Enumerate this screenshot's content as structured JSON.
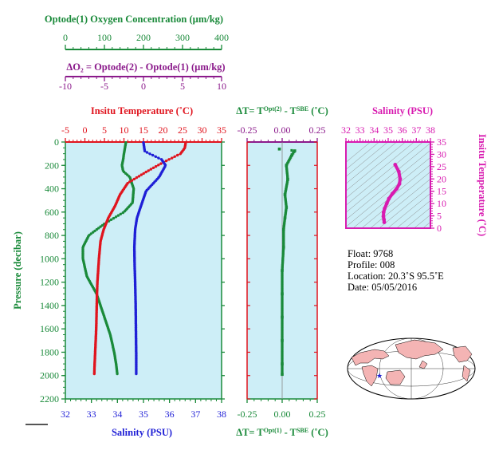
{
  "colors": {
    "green": "#1a8a3a",
    "purple": "#8b1a8b",
    "red": "#e0141e",
    "blue": "#1f1fd6",
    "magenta": "#d81bb0",
    "panel": "#cdeef7",
    "grey": "#888888"
  },
  "oxygen_axis": {
    "title": "Optode(1) Oxygen Concentration (µm/kg)",
    "ticks": [
      "0",
      "100",
      "200",
      "300",
      "400"
    ]
  },
  "delta_o2_axis": {
    "title": "ΔO₂ = Optode(2) - Optode(1)   (µm/kg)",
    "ticks": [
      "-10",
      "-5",
      "0",
      "5",
      "10"
    ]
  },
  "main_panel": {
    "temp_title": "Insitu Temperature (˚C)",
    "temp_ticks": [
      "-5",
      "0",
      "5",
      "10",
      "15",
      "20",
      "25",
      "30",
      "35"
    ],
    "sal_title": "Salinity (PSU)",
    "sal_ticks": [
      "32",
      "33",
      "34",
      "35",
      "36",
      "37",
      "38"
    ],
    "pres_title": "Pressure (decibar)",
    "pres_ticks": [
      "0",
      "200",
      "400",
      "600",
      "800",
      "1000",
      "1200",
      "1400",
      "1600",
      "1800",
      "2000",
      "2200"
    ]
  },
  "dt_panel": {
    "top_title": "ΔT= T",
    "top_sup1": "Opt(2)",
    "top_mid": " - T",
    "top_sup2": "SBE",
    "top_end": " (˚C)",
    "bottom_title": "ΔT= T",
    "bottom_sup1": "Opt(1)",
    "bottom_mid": " - T",
    "bottom_sup2": "SBE",
    "bottom_end": " (˚C)",
    "top_ticks": [
      "-0.25",
      "0.00",
      "0.25"
    ],
    "bottom_ticks": [
      "-0.25",
      "0.00",
      "0.25"
    ]
  },
  "ts_panel": {
    "title": "Salinity (PSU)",
    "sal_ticks": [
      "32",
      "33",
      "34",
      "35",
      "36",
      "37",
      "38"
    ],
    "temp_title": "Insitu Temperature (˚C)",
    "temp_ticks": [
      "0",
      "5",
      "10",
      "15",
      "20",
      "25",
      "30",
      "35"
    ]
  },
  "info": {
    "float": "Float:  9768",
    "profile": "Profile:  008",
    "location": "Location:  20.3˚S  95.5˚E",
    "date": "Date:  05/05/2016"
  },
  "map": {
    "marker": "★"
  },
  "chart_data": [
    {
      "type": "line",
      "name": "temperature profile",
      "x_units": "˚C",
      "y_units": "decibar",
      "xlim": [
        -5,
        35
      ],
      "ylim": [
        0,
        2200
      ],
      "x": [
        25.8,
        25.6,
        24.5,
        20,
        16,
        11,
        9,
        7.7,
        6,
        4.8,
        4.0,
        3.6,
        3.4,
        3.2,
        3.1,
        3.0,
        2.9,
        2.7,
        2.5,
        2.4
      ],
      "y": [
        5,
        50,
        100,
        175,
        250,
        350,
        450,
        550,
        650,
        750,
        850,
        1000,
        1100,
        1200,
        1300,
        1450,
        1600,
        1750,
        1900,
        1990
      ]
    },
    {
      "type": "line",
      "name": "salinity profile",
      "x_units": "PSU",
      "y_units": "decibar",
      "xlim": [
        32,
        38
      ],
      "ylim": [
        0,
        2200
      ],
      "x": [
        35.0,
        35.05,
        35.7,
        35.85,
        35.6,
        35.1,
        34.9,
        34.75,
        34.68,
        34.65,
        34.66,
        34.68,
        34.7,
        34.71,
        34.72,
        34.72,
        34.72
      ],
      "y": [
        5,
        80,
        150,
        200,
        300,
        420,
        550,
        650,
        750,
        900,
        1050,
        1200,
        1400,
        1600,
        1800,
        1900,
        1990
      ]
    },
    {
      "type": "line",
      "name": "oxygen profile",
      "x_units": "µm/kg",
      "y_units": "decibar",
      "xlim": [
        0,
        400
      ],
      "ylim": [
        0,
        2200
      ],
      "x": [
        155,
        150,
        148,
        145,
        148,
        165,
        175,
        172,
        150,
        100,
        60,
        45,
        45,
        55,
        80,
        100,
        115,
        125,
        130,
        133
      ],
      "y": [
        5,
        100,
        150,
        200,
        250,
        300,
        400,
        520,
        600,
        700,
        800,
        900,
        1000,
        1150,
        1300,
        1500,
        1650,
        1800,
        1900,
        1990
      ]
    },
    {
      "type": "scatter",
      "name": "delta T",
      "x_units": "˚C",
      "y_units": "decibar",
      "xlim": [
        -0.25,
        0.25
      ],
      "ylim": [
        0,
        2200
      ],
      "x": [
        -0.02,
        0.09,
        0.07,
        0.03,
        0.04,
        0.02,
        0.03,
        0.02,
        0.01,
        0.01,
        0.0,
        0.0,
        0.0,
        0.0,
        0.0,
        0.0
      ],
      "y": [
        60,
        75,
        110,
        200,
        320,
        450,
        560,
        650,
        750,
        900,
        1100,
        1300,
        1500,
        1700,
        1900,
        1990
      ]
    },
    {
      "type": "line",
      "name": "T-S diagram",
      "xlim": [
        32,
        38
      ],
      "ylim": [
        0,
        35
      ],
      "x": [
        34.72,
        34.7,
        34.66,
        34.68,
        34.75,
        34.9,
        35.05,
        35.3,
        35.6,
        35.8,
        35.85,
        35.75,
        35.5
      ],
      "y": [
        2.4,
        3.5,
        4.8,
        6.5,
        8,
        10,
        12,
        14,
        16,
        18,
        20,
        23,
        25.8
      ]
    }
  ]
}
